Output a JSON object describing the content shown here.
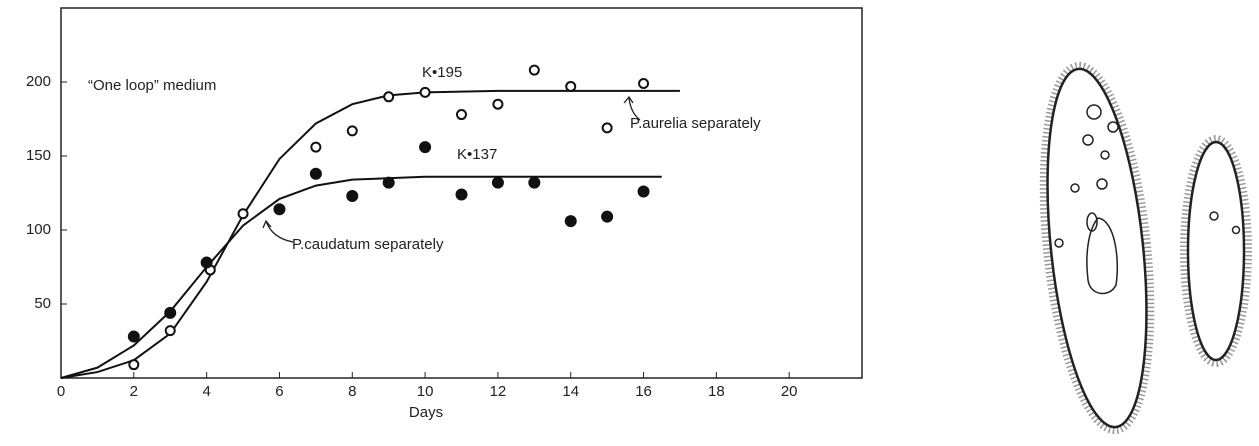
{
  "chart_data": {
    "type": "scatter",
    "annotation": "“One loop” medium",
    "xlabel": "Days",
    "xlim": [
      0,
      22
    ],
    "ylim": [
      0,
      250
    ],
    "xticks": [
      0,
      2,
      4,
      6,
      8,
      10,
      12,
      14,
      16,
      18,
      20
    ],
    "yticks": [
      50,
      100,
      150,
      200
    ],
    "series": [
      {
        "name": "P.aurelia separately",
        "label": "K•195",
        "marker": "open",
        "color": "#111",
        "x": [
          2,
          3,
          4.1,
          5,
          7,
          8,
          9,
          10,
          11,
          12,
          13,
          14,
          15,
          16
        ],
        "values": [
          9,
          32,
          73,
          111,
          156,
          167,
          190,
          193,
          178,
          185,
          208,
          197,
          169,
          199
        ],
        "fit_x": [
          0,
          1,
          2,
          3,
          4,
          5,
          6,
          7,
          8,
          9,
          10,
          12,
          14,
          17
        ],
        "fit": [
          0,
          4,
          12,
          30,
          65,
          110,
          148,
          172,
          185,
          191,
          193,
          194,
          194,
          194
        ]
      },
      {
        "name": "P.caudatum separately",
        "label": "K•137",
        "marker": "filled",
        "color": "#111",
        "x": [
          2,
          3,
          4,
          6,
          7,
          8,
          9,
          10,
          11,
          12,
          13,
          14,
          15,
          16
        ],
        "values": [
          28,
          44,
          78,
          114,
          138,
          123,
          132,
          156,
          124,
          132,
          132,
          106,
          109,
          126
        ],
        "fit_x": [
          0,
          1,
          2,
          3,
          4,
          5,
          6,
          7,
          8,
          10,
          12,
          16.5
        ],
        "fit": [
          0,
          7,
          22,
          45,
          75,
          103,
          121,
          130,
          134,
          136,
          136,
          136
        ]
      }
    ]
  }
}
